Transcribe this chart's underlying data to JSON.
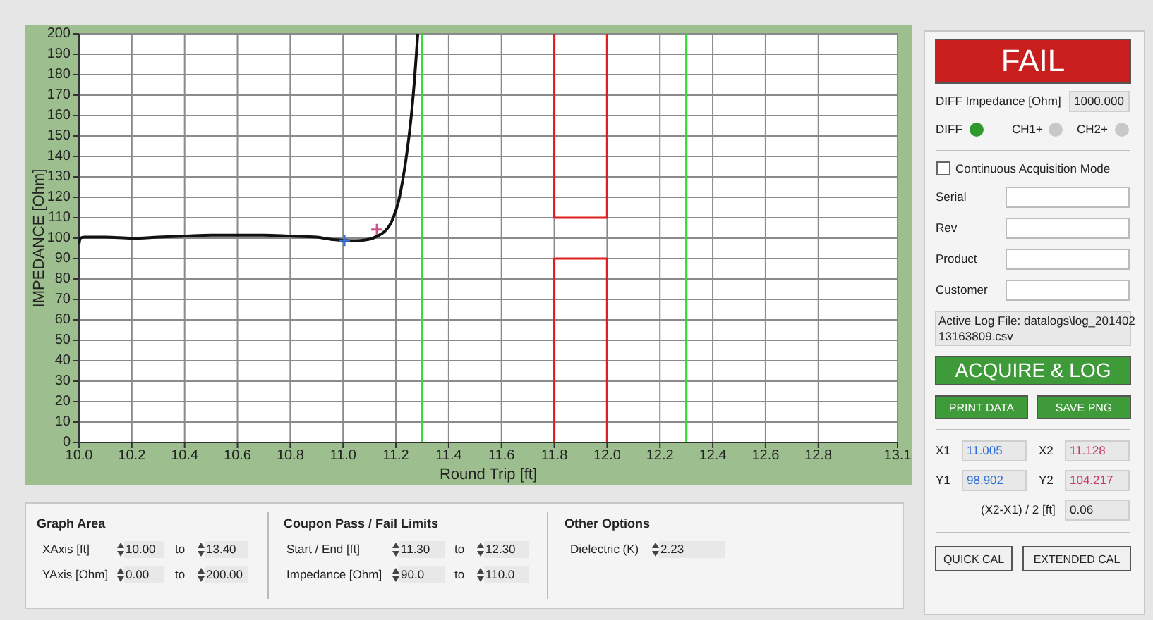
{
  "chart_data": [
    {
      "type": "line",
      "xlabel": "Round Trip [ft]",
      "ylabel": "IMPEDANCE [Ohm]",
      "xlim": [
        10.0,
        13.1
      ],
      "xticks": [
        {
          "value": 10.0,
          "label": "10.0"
        },
        {
          "value": 10.2,
          "label": "10.2"
        },
        {
          "value": 10.4,
          "label": "10.4"
        },
        {
          "value": 10.6,
          "label": "10.6"
        },
        {
          "value": 10.8,
          "label": "10.8"
        },
        {
          "value": 11.0,
          "label": "11.0"
        },
        {
          "value": 11.2,
          "label": "11.2"
        },
        {
          "value": 11.4,
          "label": "11.4"
        },
        {
          "value": 11.6,
          "label": "11.6"
        },
        {
          "value": 11.8,
          "label": "11.8"
        },
        {
          "value": 12.0,
          "label": "12.0"
        },
        {
          "value": 12.2,
          "label": "12.2"
        },
        {
          "value": 12.4,
          "label": "12.4"
        },
        {
          "value": 12.6,
          "label": "12.6"
        },
        {
          "value": 12.8,
          "label": "12.8"
        },
        {
          "value": 13.1,
          "label": "13.1"
        }
      ],
      "ylim": [
        0,
        200
      ],
      "yticks": [
        0,
        10,
        20,
        30,
        40,
        50,
        60,
        70,
        80,
        90,
        100,
        110,
        120,
        130,
        140,
        150,
        160,
        170,
        180,
        190,
        200
      ],
      "grid": true,
      "marker": "none",
      "line_style": "solid",
      "series": [
        {
          "type": "line",
          "color": "#111111",
          "x": [
            10.0,
            10.005,
            10.02,
            10.1,
            10.2,
            10.3,
            10.4,
            10.5,
            10.6,
            10.7,
            10.8,
            10.9,
            10.95,
            11.0,
            11.05,
            11.1,
            11.13,
            11.155,
            11.175,
            11.19,
            11.21,
            11.228,
            11.245,
            11.26,
            11.272,
            11.283
          ],
          "values": [
            97,
            100,
            100.5,
            100.5,
            100,
            100.5,
            101,
            101.5,
            101.5,
            101.5,
            101,
            100.5,
            99.5,
            99,
            98.8,
            99.5,
            101,
            103,
            106,
            110,
            118,
            130,
            145,
            162,
            180,
            200
          ]
        },
        {
          "type": "line",
          "color": "#e02020",
          "x": [
            11.8,
            11.8,
            12.0,
            12.0
          ],
          "values": [
            200,
            110,
            110,
            200
          ]
        },
        {
          "type": "line",
          "color": "#e02020",
          "x": [
            11.8,
            11.8,
            12.0,
            12.0
          ],
          "values": [
            0,
            90,
            90,
            0
          ]
        },
        {
          "type": "scatter",
          "marker": "cross",
          "color": "#3a6fd8",
          "x": [
            11.005
          ],
          "values": [
            98.902
          ]
        },
        {
          "type": "scatter",
          "marker": "cross",
          "color": "#d0508a",
          "x": [
            11.128
          ],
          "values": [
            104.217
          ]
        }
      ],
      "ref_lines": [
        {
          "axis": "x",
          "value": 11.3,
          "color": "#33dd33"
        },
        {
          "axis": "x",
          "value": 12.3,
          "color": "#33dd33"
        }
      ]
    },
    {
      "type": "other",
      "annotations": [
        "FAIL",
        "DIFF Impedance [Ohm]",
        "1000.000",
        "DIFF",
        "CH1+",
        "CH2+",
        "Continuous Acquisition Mode",
        "Serial",
        "Rev",
        "Product",
        "Customer",
        "Active Log File: datalogs\\log_201402",
        "13163809.csv",
        "ACQUIRE & LOG",
        "PRINT DATA",
        "SAVE PNG",
        "X1",
        "11.005",
        "X2",
        "11.128",
        "Y1",
        "98.902",
        "Y2",
        "104.217",
        "(X2-X1) / 2 [ft]",
        "0.06",
        "QUICK CAL",
        "EXTENDED CAL"
      ]
    },
    {
      "type": "other",
      "annotations": [
        "Graph Area",
        "XAxis [ft]",
        "10.00",
        "to",
        "13.40",
        "YAxis [Ohm]",
        "0.00",
        "to",
        "200.00",
        "Coupon Pass / Fail Limits",
        "Start / End [ft]",
        "11.30",
        "to",
        "12.30",
        "Impedance [Ohm]",
        "90.0",
        "to",
        "110.0",
        "Other Options",
        "Dielectric (K)",
        "2.23"
      ]
    }
  ]
}
